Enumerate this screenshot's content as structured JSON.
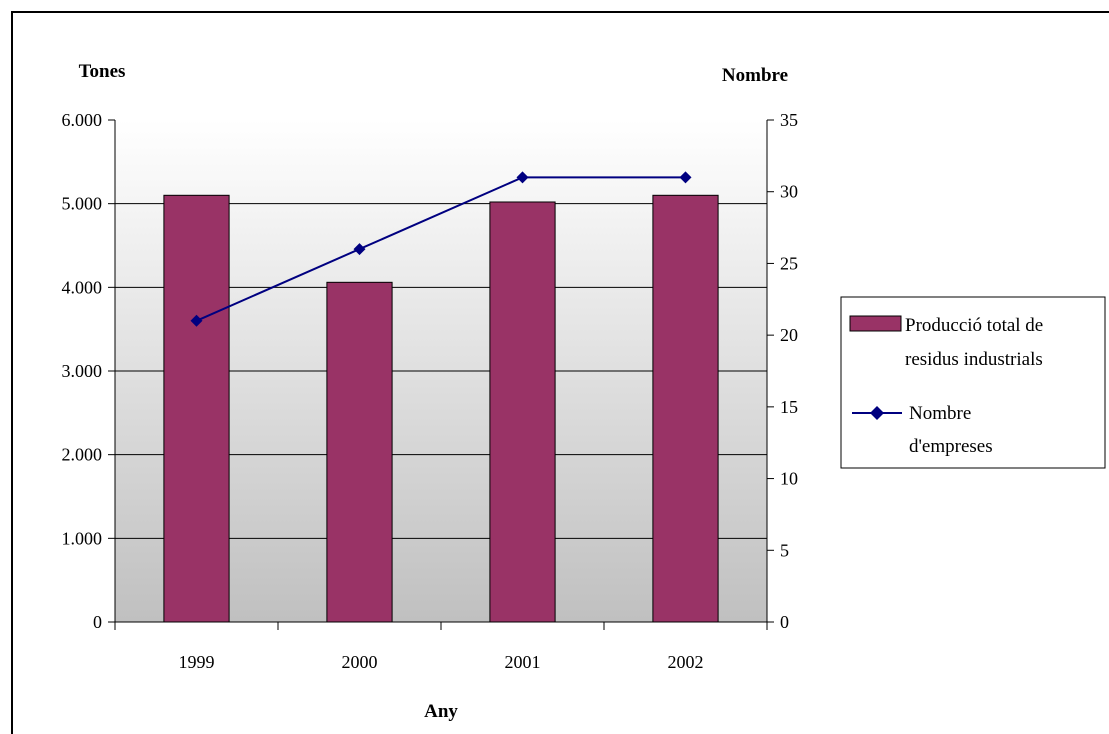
{
  "colors": {
    "bar": "#993366",
    "line": "#000080",
    "plot_top": "#ffffff",
    "plot_bottom": "#c0c0c0"
  },
  "chart_data": {
    "type": "bar",
    "categories": [
      "1999",
      "2000",
      "2001",
      "2002"
    ],
    "series": [
      {
        "name": "Producció total de residus industrials",
        "type": "bar",
        "axis": "left",
        "values": [
          5100,
          4060,
          5020,
          5100
        ]
      },
      {
        "name": "Nombre d'empreses",
        "type": "line",
        "axis": "right",
        "marker": "diamond",
        "values": [
          21,
          26,
          31,
          31
        ]
      }
    ],
    "xlabel": "Any",
    "ylabel": "Tones",
    "y2label": "Nombre",
    "ylim": [
      0,
      6000
    ],
    "y2lim": [
      0,
      35
    ],
    "yticks": [
      "0",
      "1.000",
      "2.000",
      "3.000",
      "4.000",
      "5.000",
      "6.000"
    ],
    "y2ticks": [
      "0",
      "5",
      "10",
      "15",
      "20",
      "25",
      "30",
      "35"
    ],
    "grid": "horizontal",
    "legend": {
      "position": "right",
      "entries": [
        {
          "lines": [
            "Producció total de",
            "residus industrials"
          ]
        },
        {
          "lines": [
            "Nombre",
            "d'empreses"
          ]
        }
      ]
    }
  }
}
